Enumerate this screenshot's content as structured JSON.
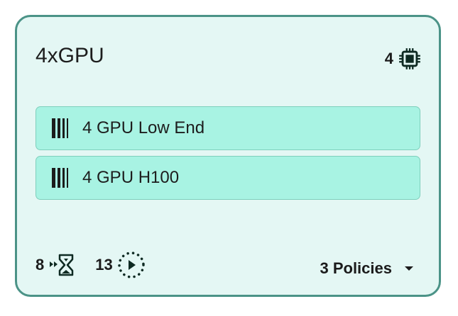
{
  "card": {
    "title": "4xGPU",
    "gpu_count": "4",
    "gpu_icon": "cpu-chip-icon",
    "nodes": [
      {
        "label": "4 GPU Low End",
        "icon": "barcode-icon"
      },
      {
        "label": "4 GPU H100",
        "icon": "barcode-icon"
      }
    ],
    "footer": {
      "pending_count": "8",
      "pending_icon": "hourglass-queue-icon",
      "running_count": "13",
      "running_icon": "play-circle-dotted-icon",
      "policies_label": "3 Policies"
    }
  },
  "colors": {
    "border": "#4b9387",
    "card_bg": "#e4f7f4",
    "chip_bg": "#a8f3e3"
  }
}
